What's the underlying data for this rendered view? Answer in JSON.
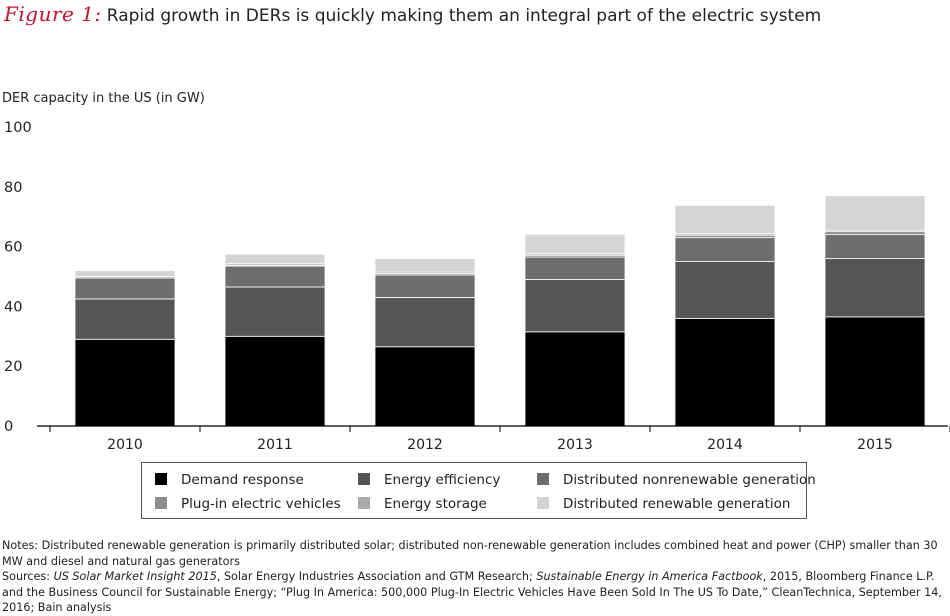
{
  "title": {
    "figure_label": "Figure 1:",
    "text": "Rapid growth in DERs is quickly making them an integral part of the electric system"
  },
  "chart_data": {
    "type": "bar",
    "stacked": true,
    "title": "Rapid growth in DERs is quickly making them an integral part of the electric system",
    "ylabel": "DER capacity in the US (in GW)",
    "xlabel": "",
    "ylim": [
      0,
      100
    ],
    "yticks": [
      0,
      20,
      40,
      60,
      80,
      100
    ],
    "grid": false,
    "categories": [
      "2010",
      "2011",
      "2012",
      "2013",
      "2014",
      "2015"
    ],
    "series": [
      {
        "name": "Demand response",
        "color": "#000000",
        "values": [
          29,
          30,
          26.5,
          31.5,
          36,
          36.5
        ]
      },
      {
        "name": "Energy efficiency",
        "color": "#555555",
        "values": [
          13.5,
          16.5,
          16.5,
          17.5,
          19,
          19.5
        ]
      },
      {
        "name": "Distributed nonrenewable generation",
        "color": "#6d6d6d",
        "values": [
          7,
          7,
          7.5,
          7.5,
          8,
          8
        ]
      },
      {
        "name": "Plug-in electric vehicles",
        "color": "#8c8c8c",
        "values": [
          0,
          0.3,
          0.5,
          0.6,
          0.8,
          1
        ]
      },
      {
        "name": "Energy storage",
        "color": "#aaaaaa",
        "values": [
          0.5,
          0.5,
          0.5,
          0.5,
          0.5,
          0.5
        ]
      },
      {
        "name": "Distributed renewable generation",
        "color": "#d4d4d4",
        "values": [
          2,
          3.2,
          4.5,
          6.5,
          9.5,
          11.5
        ]
      }
    ]
  },
  "legend": {
    "items": [
      {
        "label": "Demand response",
        "color": "#000000"
      },
      {
        "label": "Energy efficiency",
        "color": "#555555"
      },
      {
        "label": "Distributed nonrenewable generation",
        "color": "#6d6d6d"
      },
      {
        "label": "Plug-in electric vehicles",
        "color": "#8c8c8c"
      },
      {
        "label": "Energy storage",
        "color": "#aaaaaa"
      },
      {
        "label": "Distributed renewable generation",
        "color": "#d4d4d4"
      }
    ]
  },
  "notes": {
    "notes_text": "Notes: Distributed renewable generation is primarily distributed solar; distributed non-renewable generation includes combined heat and power (CHP) smaller than 30 MW and diesel and natural gas generators",
    "sources_prefix": "Sources: ",
    "source_1_title": "US Solar Market Insight 2015",
    "source_1_rest": ", Solar Energy Industries Association and GTM Research; ",
    "source_2_title": "Sustainable Energy in America Factbook",
    "source_2_rest": ", 2015, Bloomberg Finance L.P. and the Business Council for Sustainable Energy; “Plug In America: 500,000 Plug-In Electric Vehicles Have Been Sold In The US To Date,” CleanTechnica, September 14, 2016; Bain analysis"
  }
}
